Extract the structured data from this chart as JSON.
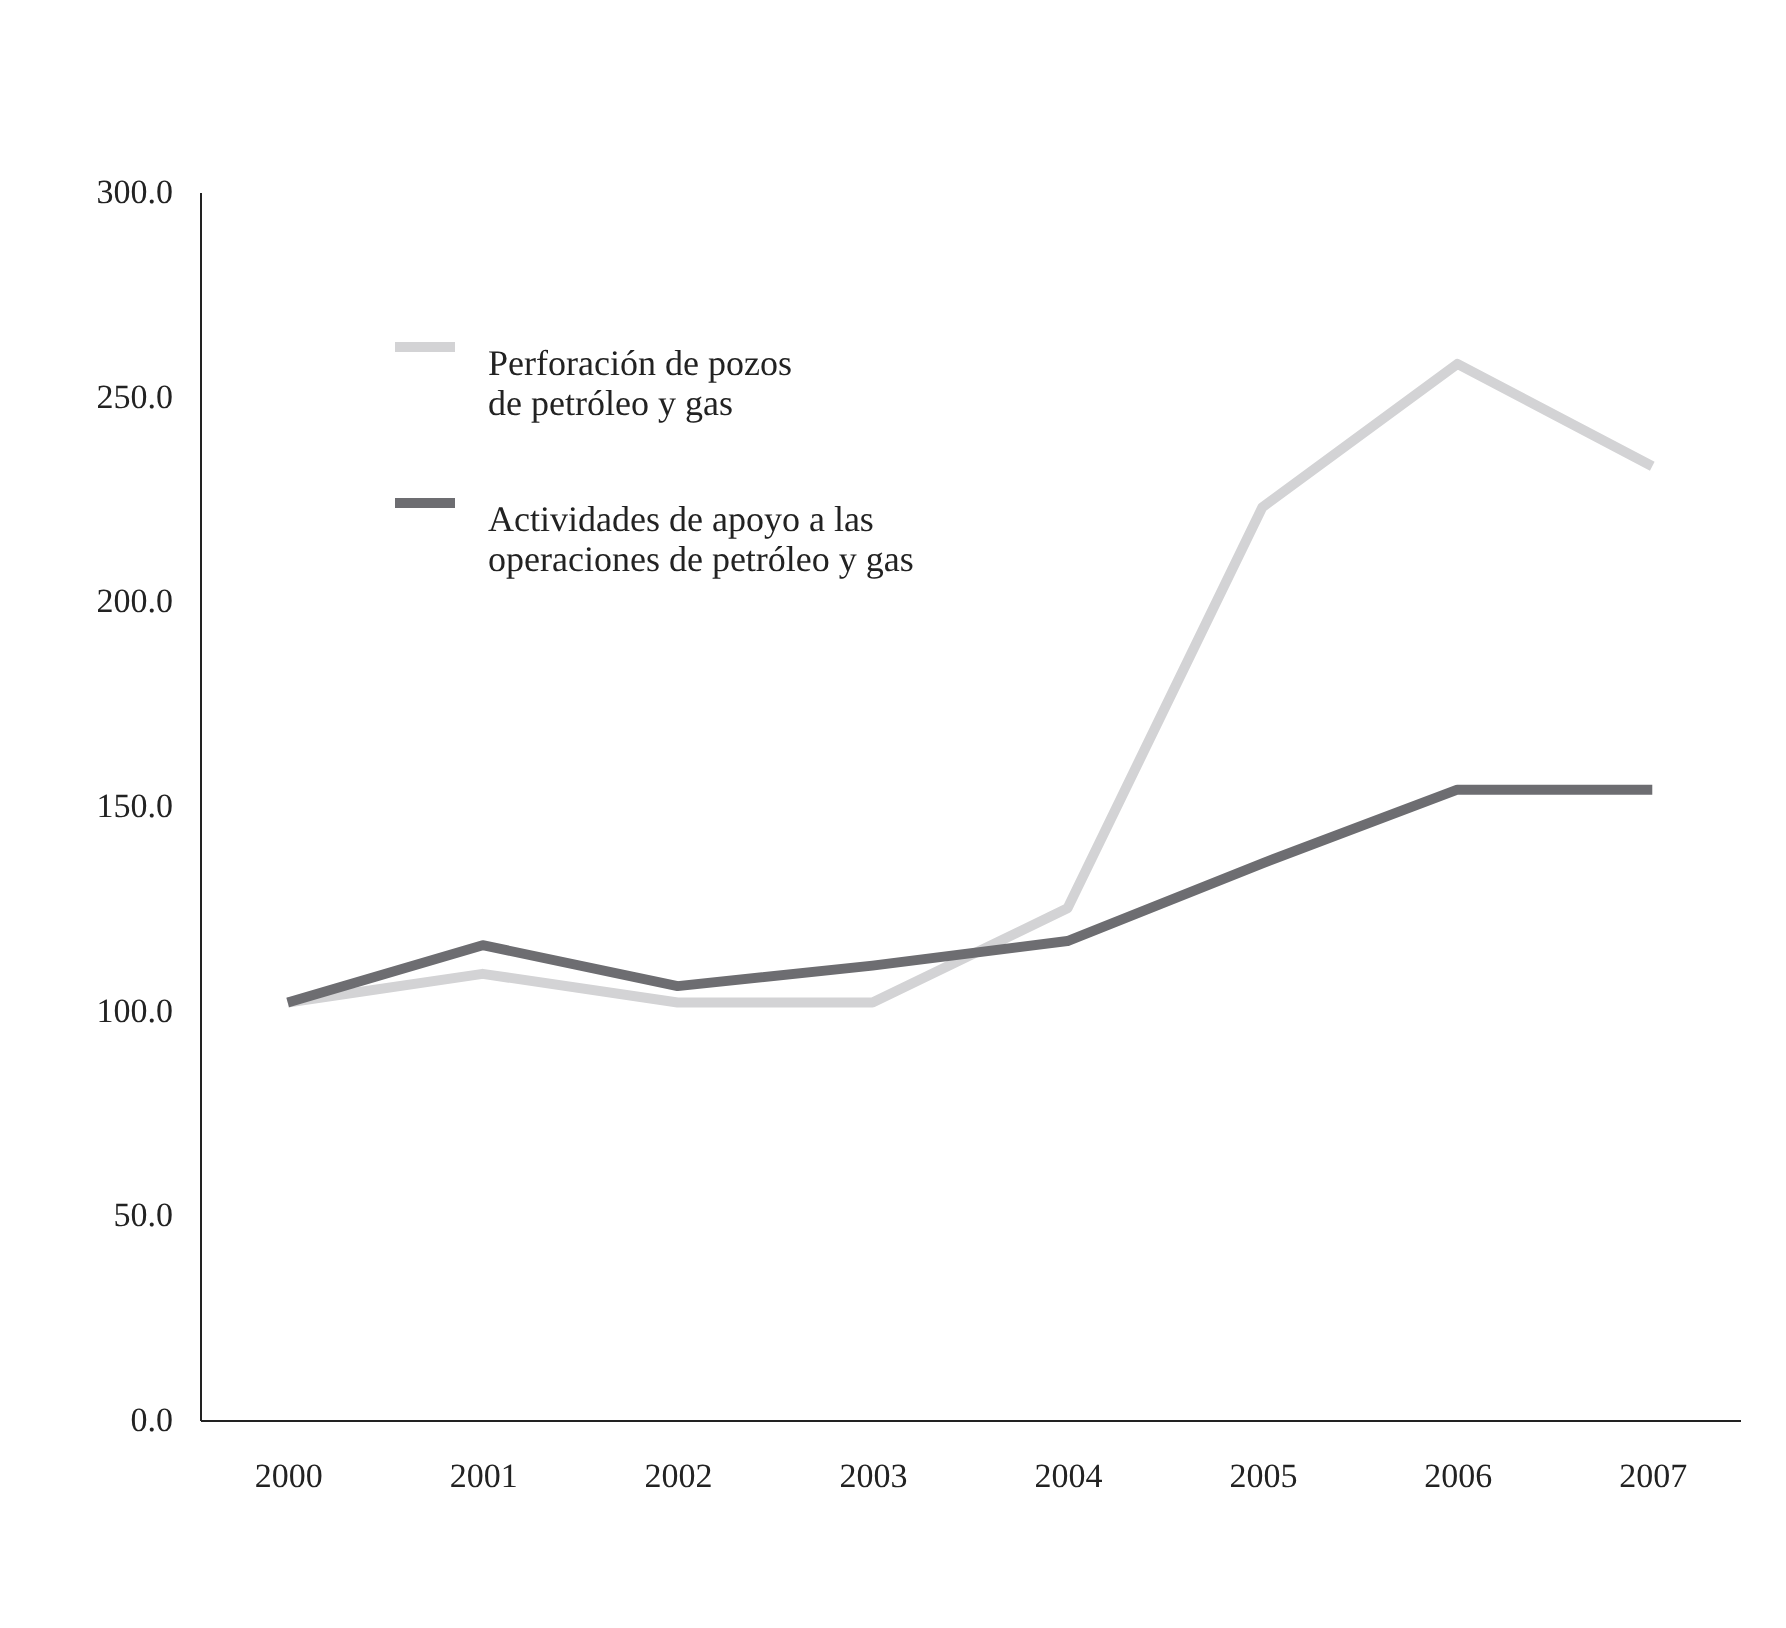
{
  "chart_data": {
    "type": "line",
    "categories": [
      "2000",
      "2001",
      "2002",
      "2003",
      "2004",
      "2005",
      "2006",
      "2007"
    ],
    "series": [
      {
        "name": "Perforación de pozos de petróleo y gas",
        "color": "#d3d3d5",
        "values": [
          102,
          109,
          102,
          102,
          125,
          223,
          258,
          233
        ]
      },
      {
        "name": "Actividades de apoyo a las operaciones de petróleo y gas",
        "color": "#6d6d71",
        "values": [
          102,
          116,
          106,
          111,
          117,
          136,
          154,
          154
        ]
      }
    ],
    "ylim": [
      0,
      300
    ],
    "yticks": [
      {
        "value": 0,
        "label": "0.0"
      },
      {
        "value": 50,
        "label": "50.0"
      },
      {
        "value": 100,
        "label": "100.0"
      },
      {
        "value": 150,
        "label": "150.0"
      },
      {
        "value": 200,
        "label": "200.0"
      },
      {
        "value": 250,
        "label": "250.0"
      },
      {
        "value": 300,
        "label": "300.0"
      }
    ],
    "grid": false,
    "legend": "top left"
  }
}
